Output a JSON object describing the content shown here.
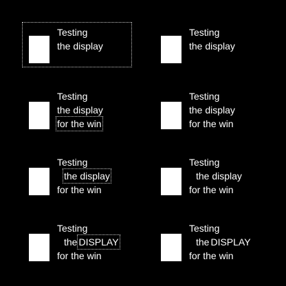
{
  "cells": [
    {
      "lines": [
        [
          "Testing"
        ],
        [
          "the display"
        ]
      ]
    },
    {
      "lines": [
        [
          "Testing"
        ],
        [
          "the display"
        ]
      ]
    },
    {
      "lines": [
        [
          "Testing"
        ],
        [
          "the display"
        ],
        [
          "for the win"
        ]
      ]
    },
    {
      "lines": [
        [
          "Testing"
        ],
        [
          "the display"
        ],
        [
          "for the win"
        ]
      ]
    },
    {
      "lines": [
        [
          "Testing"
        ],
        [
          "the display"
        ],
        [
          "for the win"
        ]
      ]
    },
    {
      "lines": [
        [
          "Testing"
        ],
        [
          "the display"
        ],
        [
          "for the win"
        ]
      ]
    },
    {
      "lines": [
        [
          "Testing"
        ],
        [
          "the",
          "DISPLAY"
        ],
        [
          "for the win"
        ]
      ]
    },
    {
      "lines": [
        [
          "Testing"
        ],
        [
          "the",
          "DISPLAY"
        ],
        [
          "for the win"
        ]
      ]
    }
  ]
}
